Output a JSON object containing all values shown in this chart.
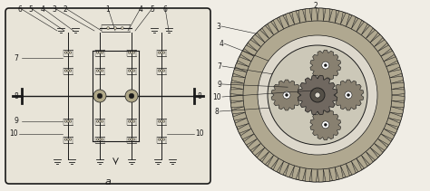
{
  "bg_color": "#f0ede5",
  "line_color": "#1a1a1a",
  "fig_width": 4.74,
  "fig_height": 2.11,
  "dpi": 100,
  "box_facecolor": "#e8e4d8",
  "gear_fill": "#c0b898",
  "hatch_color": "#888880",
  "white": "#f5f2ec"
}
